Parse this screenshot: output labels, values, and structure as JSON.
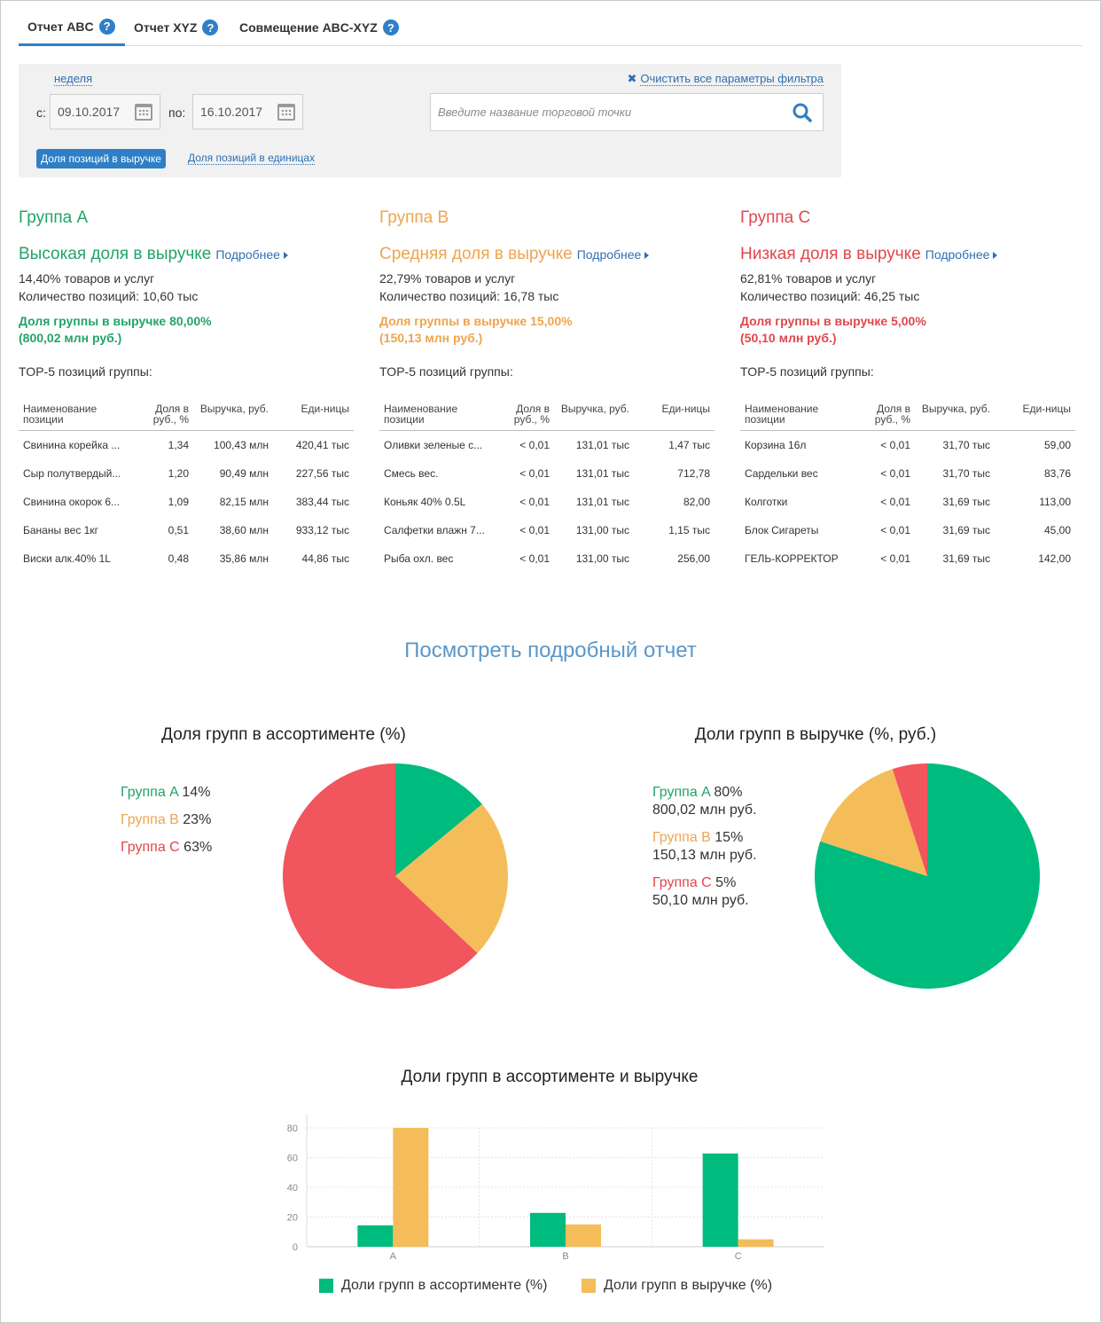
{
  "tabs": [
    {
      "label": "Отчет ABC",
      "active": true
    },
    {
      "label": "Отчет XYZ",
      "active": false
    },
    {
      "label": "Совмещение ABC-XYZ",
      "active": false
    }
  ],
  "filter": {
    "period_link": "неделя",
    "clear_link": "Очистить все параметры фильтра",
    "from_label": "с:",
    "from_value": "09.10.2017",
    "to_label": "по:",
    "to_value": "16.10.2017",
    "search_placeholder": "Введите название торговой точки",
    "mode_revenue": "Доля позиций в выручке",
    "mode_units": "Доля позиций в единицах"
  },
  "colors": {
    "A": "#00bb7e",
    "B": "#f4bd59",
    "C": "#f1555d",
    "link": "#2f6fb3",
    "accent": "#2f7fc6"
  },
  "groups": [
    {
      "title": "Группа A",
      "subtitle": "Высокая доля в выручке",
      "more": "Подробнее",
      "goods_share": "14,40% товаров и услуг",
      "positions": "Количество позиций: 10,60 тыс",
      "revenue_share": "Доля группы в выручке 80,00%",
      "revenue_amount": "(800,02 млн руб.)",
      "top5_label": "TOP-5 позиций группы:",
      "columns": [
        "Наименование позиции",
        "Доля в руб., %",
        "Выручка, руб.",
        "Еди-ницы"
      ],
      "rows": [
        [
          "Свинина корейка ...",
          "1,34",
          "100,43 млн",
          "420,41 тыс"
        ],
        [
          "Сыр полутвердый...",
          "1,20",
          "90,49 млн",
          "227,56 тыс"
        ],
        [
          "Свинина окорок 6...",
          "1,09",
          "82,15 млн",
          "383,44 тыс"
        ],
        [
          "Бананы вес 1кг",
          "0,51",
          "38,60 млн",
          "933,12 тыс"
        ],
        [
          "Виски алк.40% 1L",
          "0,48",
          "35,86 млн",
          "44,86 тыс"
        ]
      ]
    },
    {
      "title": "Группа B",
      "subtitle": "Средняя доля в выручке",
      "more": "Подробнее",
      "goods_share": "22,79% товаров и услуг",
      "positions": "Количество позиций: 16,78 тыс",
      "revenue_share": "Доля группы в выручке 15,00%",
      "revenue_amount": "(150,13 млн руб.)",
      "top5_label": "TOP-5 позиций группы:",
      "columns": [
        "Наименование позиции",
        "Доля в руб., %",
        "Выручка, руб.",
        "Еди-ницы"
      ],
      "rows": [
        [
          "Оливки зеленые с...",
          "< 0,01",
          "131,01 тыс",
          "1,47 тыс"
        ],
        [
          "Смесь вес.",
          "< 0,01",
          "131,01 тыс",
          "712,78"
        ],
        [
          "Коньяк 40% 0.5L",
          "< 0,01",
          "131,01 тыс",
          "82,00"
        ],
        [
          "Салфетки влажн 7...",
          "< 0,01",
          "131,00 тыс",
          "1,15 тыс"
        ],
        [
          "Рыба охл. вес",
          "< 0,01",
          "131,00 тыс",
          "256,00"
        ]
      ]
    },
    {
      "title": "Группа C",
      "subtitle": "Низкая доля в выручке",
      "more": "Подробнее",
      "goods_share": "62,81% товаров и услуг",
      "positions": "Количество позиций: 46,25 тыс",
      "revenue_share": "Доля группы в выручке 5,00%",
      "revenue_amount": "(50,10 млн руб.)",
      "top5_label": "TOP-5 позиций группы:",
      "columns": [
        "Наименование позиции",
        "Доля в руб., %",
        "Выручка, руб.",
        "Еди-ницы"
      ],
      "rows": [
        [
          "Корзина 16л",
          "< 0,01",
          "31,70 тыс",
          "59,00"
        ],
        [
          "Сардельки вес",
          "< 0,01",
          "31,70 тыс",
          "83,76"
        ],
        [
          "Колготки",
          "< 0,01",
          "31,69 тыс",
          "113,00"
        ],
        [
          "Блок Сигареты",
          "< 0,01",
          "31,69 тыс",
          "45,00"
        ],
        [
          "ГЕЛЬ-КОРРЕКТОР",
          "< 0,01",
          "31,69 тыс",
          "142,00"
        ]
      ]
    }
  ],
  "report_link": "Посмотреть подробный отчет",
  "chart_data": [
    {
      "type": "pie",
      "title": "Доля групп в ассортименте (%)",
      "labels": [
        "Группа A",
        "Группа B",
        "Группа C"
      ],
      "values": [
        14,
        23,
        63
      ],
      "value_labels": [
        "14%",
        "23%",
        "63%"
      ],
      "legend_position": "left"
    },
    {
      "type": "pie",
      "title": "Доли групп в выручке (%, руб.)",
      "labels": [
        "Группа A",
        "Группа B",
        "Группа C"
      ],
      "values": [
        80,
        15,
        5
      ],
      "value_labels": [
        "80%",
        "15%",
        "5%"
      ],
      "amounts": [
        "800,02 млн руб.",
        "150,13 млн руб.",
        "50,10 млн руб."
      ],
      "legend_position": "left"
    },
    {
      "type": "bar",
      "title": "Доли групп в ассортименте и выручке",
      "categories": [
        "A",
        "B",
        "C"
      ],
      "series": [
        {
          "name": "Доли групп в ассортименте (%)",
          "values": [
            14.4,
            22.79,
            62.81
          ]
        },
        {
          "name": "Доли групп в выручке (%)",
          "values": [
            80,
            15,
            5
          ]
        }
      ],
      "ylim": [
        0,
        80
      ],
      "yticks": [
        "0",
        "20",
        "40",
        "60",
        "80"
      ],
      "grid": true,
      "legend_position": "bottom"
    }
  ]
}
